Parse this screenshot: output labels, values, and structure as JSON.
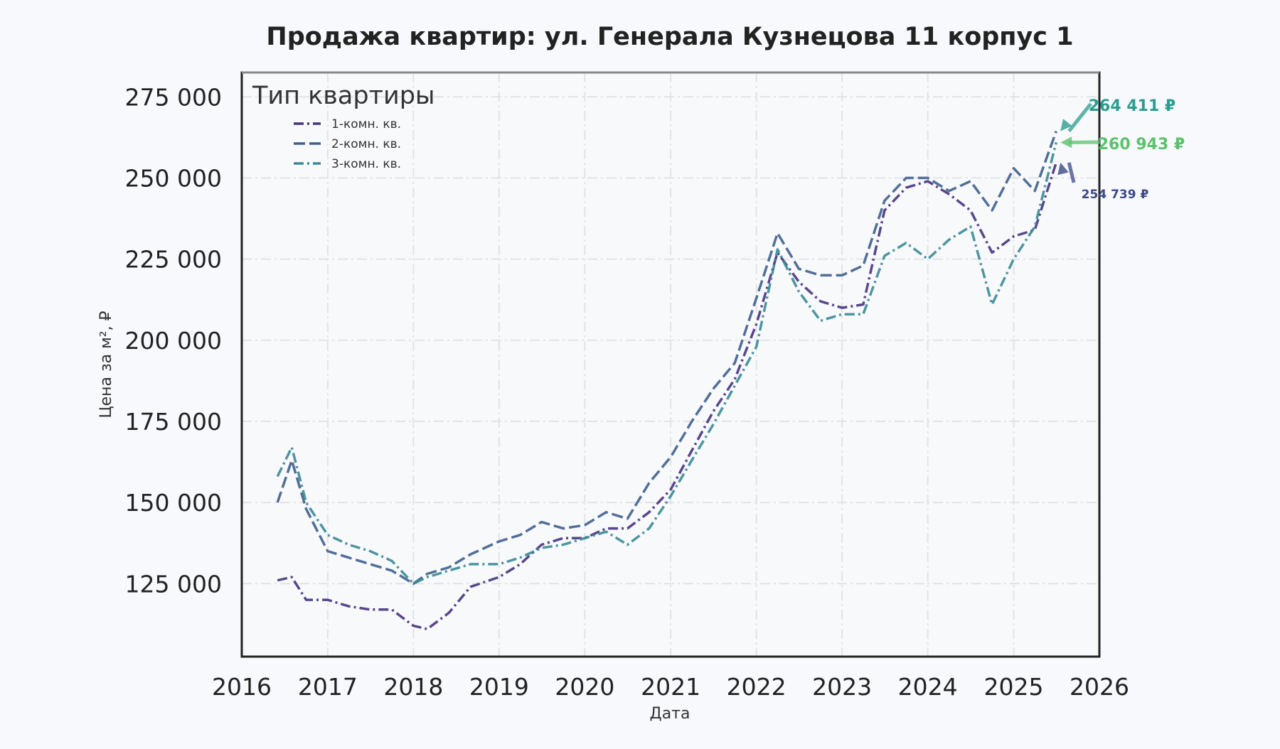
{
  "chart_data": {
    "type": "line",
    "title": "Продажа квартир: ул. Генерала Кузнецова 11 корпус 1",
    "xlabel": "Дата",
    "ylabel": "Цена за м², ₽",
    "xlim": [
      "2016-01-01",
      "2026-01-01"
    ],
    "ylim": [
      102500,
      282500
    ],
    "x_ticks": [
      "2016",
      "2017",
      "2018",
      "2019",
      "2020",
      "2021",
      "2022",
      "2023",
      "2024",
      "2025",
      "2026"
    ],
    "y_ticks": [
      "125 000",
      "150 000",
      "175 000",
      "200 000",
      "225 000",
      "250 000",
      "275 000"
    ],
    "grid": true,
    "legend": {
      "title": "Тип квартиры",
      "placement": "top-left"
    },
    "series": [
      {
        "name": "1-комн. кв.",
        "color": "#46337e",
        "dash": "dashdot",
        "x": [
          "2016-06-01",
          "2016-08-01",
          "2016-10-01",
          "2017-01-01",
          "2017-04-01",
          "2017-07-01",
          "2017-10-01",
          "2018-01-01",
          "2018-03-01",
          "2018-06-01",
          "2018-09-01",
          "2019-01-01",
          "2019-04-01",
          "2019-07-01",
          "2019-10-01",
          "2020-01-01",
          "2020-04-01",
          "2020-07-01",
          "2020-10-01",
          "2021-01-01",
          "2021-04-01",
          "2021-07-01",
          "2021-10-01",
          "2022-01-01",
          "2022-04-01",
          "2022-07-01",
          "2022-10-01",
          "2023-01-01",
          "2023-04-01",
          "2023-07-01",
          "2023-10-01",
          "2024-01-01",
          "2024-04-01",
          "2024-07-01",
          "2024-10-01",
          "2025-01-01",
          "2025-04-01",
          "2025-07-01"
        ],
        "values": [
          126000,
          127000,
          120000,
          120000,
          118000,
          117000,
          117000,
          112000,
          111000,
          116000,
          124000,
          127000,
          131000,
          137000,
          139000,
          139000,
          142000,
          142000,
          147000,
          154000,
          166000,
          178000,
          188000,
          205000,
          227000,
          218000,
          212000,
          210000,
          211000,
          240000,
          247000,
          249000,
          245000,
          240000,
          227000,
          232000,
          234000,
          254739
        ]
      },
      {
        "name": "2-комн. кв.",
        "color": "#3e5f8c",
        "dash": "longdash",
        "x": [
          "2016-06-01",
          "2016-08-01",
          "2016-10-01",
          "2017-01-01",
          "2017-04-01",
          "2017-07-01",
          "2017-10-01",
          "2018-01-01",
          "2018-03-01",
          "2018-06-01",
          "2018-09-01",
          "2019-01-01",
          "2019-04-01",
          "2019-07-01",
          "2019-10-01",
          "2020-01-01",
          "2020-04-01",
          "2020-07-01",
          "2020-10-01",
          "2021-01-01",
          "2021-04-01",
          "2021-07-01",
          "2021-10-01",
          "2022-01-01",
          "2022-04-01",
          "2022-07-01",
          "2022-10-01",
          "2023-01-01",
          "2023-04-01",
          "2023-07-01",
          "2023-10-01",
          "2024-01-01",
          "2024-04-01",
          "2024-07-01",
          "2024-10-01",
          "2025-01-01",
          "2025-04-01",
          "2025-07-01"
        ],
        "values": [
          150000,
          163000,
          148000,
          135000,
          133000,
          131000,
          129000,
          125000,
          128000,
          130000,
          134000,
          138000,
          140000,
          144000,
          142000,
          143000,
          147000,
          145000,
          156000,
          164000,
          175000,
          185000,
          193000,
          213000,
          233000,
          222000,
          220000,
          220000,
          223000,
          243000,
          250000,
          250000,
          246000,
          249000,
          240000,
          253000,
          246000,
          264411
        ]
      },
      {
        "name": "3-комн. кв.",
        "color": "#3a8a96",
        "dash": "dashdot",
        "x": [
          "2016-06-01",
          "2016-08-01",
          "2016-10-01",
          "2017-01-01",
          "2017-04-01",
          "2017-07-01",
          "2017-10-01",
          "2018-01-01",
          "2018-03-01",
          "2018-06-01",
          "2018-09-01",
          "2019-01-01",
          "2019-04-01",
          "2019-07-01",
          "2019-10-01",
          "2020-01-01",
          "2020-04-01",
          "2020-07-01",
          "2020-10-01",
          "2021-01-01",
          "2021-04-01",
          "2021-07-01",
          "2021-10-01",
          "2022-01-01",
          "2022-04-01",
          "2022-07-01",
          "2022-10-01",
          "2023-01-01",
          "2023-04-01",
          "2023-07-01",
          "2023-10-01",
          "2024-01-01",
          "2024-04-01",
          "2024-07-01",
          "2024-10-01",
          "2025-01-01",
          "2025-04-01",
          "2025-07-01"
        ],
        "values": [
          158000,
          167000,
          150000,
          140000,
          137000,
          135000,
          132000,
          125000,
          127000,
          129000,
          131000,
          131000,
          133000,
          136000,
          137000,
          139000,
          141000,
          137000,
          142000,
          152000,
          163000,
          174000,
          186000,
          198000,
          228000,
          215000,
          206000,
          208000,
          208000,
          226000,
          230000,
          225000,
          231000,
          235000,
          211000,
          225000,
          235000,
          260943
        ]
      }
    ],
    "annotations": [
      {
        "text": "264 411 ₽",
        "color": "#2a9d8f",
        "y": 264411,
        "x": "2025-07-01"
      },
      {
        "text": "260 943 ₽",
        "color": "#5bc26b",
        "y": 260943,
        "x": "2025-07-01"
      },
      {
        "text": "254 739 ₽",
        "color": "#3b4a86",
        "y": 254739,
        "x": "2025-07-01"
      }
    ]
  }
}
